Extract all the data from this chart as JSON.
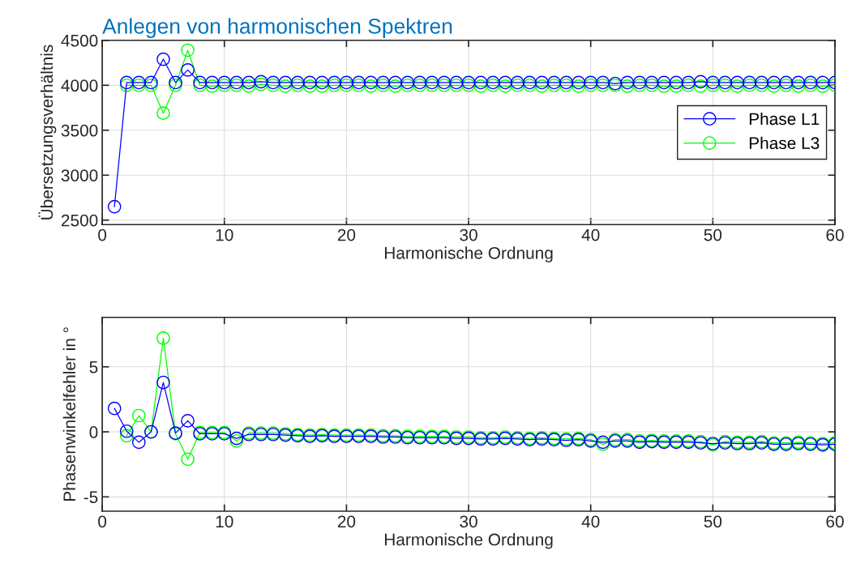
{
  "chart_data": [
    {
      "type": "line",
      "title": "Anlegen von harmonischen Spektren",
      "xlabel": "Harmonische Ordnung",
      "ylabel": "Übersetzungsverhältnis",
      "x": [
        1,
        2,
        3,
        4,
        5,
        6,
        7,
        8,
        9,
        10,
        11,
        12,
        13,
        14,
        15,
        16,
        17,
        18,
        19,
        20,
        21,
        22,
        23,
        24,
        25,
        26,
        27,
        28,
        29,
        30,
        31,
        32,
        33,
        34,
        35,
        36,
        37,
        38,
        39,
        40,
        41,
        42,
        43,
        44,
        45,
        46,
        47,
        48,
        49,
        50,
        51,
        52,
        53,
        54,
        55,
        56,
        57,
        58,
        59,
        60
      ],
      "xlim": [
        0,
        60
      ],
      "xticks": [
        0,
        10,
        20,
        30,
        40,
        50,
        60
      ],
      "ylim": [
        2450,
        4500
      ],
      "yticks": [
        2500,
        3000,
        3500,
        4000,
        4500
      ],
      "grid": true,
      "legend": "center right",
      "marker": "circle",
      "line_style": "solid",
      "series": [
        {
          "name": "Phase L1",
          "color": "#0000ff",
          "values": [
            2650,
            4030,
            4030,
            4030,
            4290,
            4030,
            4170,
            4030,
            4030,
            4030,
            4030,
            4030,
            4040,
            4030,
            4030,
            4030,
            4030,
            4030,
            4030,
            4030,
            4030,
            4030,
            4030,
            4030,
            4030,
            4030,
            4030,
            4030,
            4030,
            4030,
            4030,
            4030,
            4030,
            4030,
            4030,
            4030,
            4030,
            4030,
            4030,
            4030,
            4030,
            4020,
            4030,
            4030,
            4030,
            4030,
            4030,
            4030,
            4040,
            4030,
            4030,
            4030,
            4030,
            4030,
            4030,
            4030,
            4030,
            4030,
            4030,
            4030
          ]
        },
        {
          "name": "Phase L3",
          "color": "#00ff00",
          "values": [
            null,
            4000,
            4000,
            4000,
            3690,
            4000,
            4390,
            4000,
            3990,
            4000,
            4000,
            3990,
            4010,
            4000,
            3990,
            4000,
            3990,
            3990,
            4000,
            4000,
            4000,
            3990,
            4000,
            3990,
            4000,
            4000,
            4000,
            4000,
            4000,
            4000,
            3990,
            4000,
            3990,
            4000,
            4000,
            3990,
            4000,
            4000,
            3990,
            4000,
            4000,
            4000,
            3990,
            4000,
            4000,
            3990,
            3990,
            4000,
            3990,
            4000,
            4000,
            3990,
            4000,
            4000,
            3990,
            4000,
            3990,
            4000,
            3990,
            4000
          ]
        }
      ]
    },
    {
      "type": "line",
      "xlabel": "Harmonische Ordnung",
      "ylabel": "Phasenwinkelfehler in °",
      "x": [
        1,
        2,
        3,
        4,
        5,
        6,
        7,
        8,
        9,
        10,
        11,
        12,
        13,
        14,
        15,
        16,
        17,
        18,
        19,
        20,
        21,
        22,
        23,
        24,
        25,
        26,
        27,
        28,
        29,
        30,
        31,
        32,
        33,
        34,
        35,
        36,
        37,
        38,
        39,
        40,
        41,
        42,
        43,
        44,
        45,
        46,
        47,
        48,
        49,
        50,
        51,
        52,
        53,
        54,
        55,
        56,
        57,
        58,
        59,
        60
      ],
      "xlim": [
        0,
        60
      ],
      "xticks": [
        0,
        10,
        20,
        30,
        40,
        50,
        60
      ],
      "ylim": [
        -6.1,
        8.8
      ],
      "yticks": [
        -5,
        0,
        5
      ],
      "grid": true,
      "marker": "circle",
      "line_style": "solid",
      "series": [
        {
          "color": "#0000ff",
          "values": [
            1.8,
            0.05,
            -0.8,
            0,
            3.8,
            -0.1,
            0.85,
            -0.15,
            -0.15,
            -0.15,
            -0.5,
            -0.2,
            -0.2,
            -0.2,
            -0.25,
            -0.3,
            -0.35,
            -0.3,
            -0.35,
            -0.35,
            -0.35,
            -0.35,
            -0.4,
            -0.4,
            -0.45,
            -0.45,
            -0.45,
            -0.45,
            -0.5,
            -0.5,
            -0.55,
            -0.55,
            -0.5,
            -0.55,
            -0.6,
            -0.55,
            -0.6,
            -0.65,
            -0.6,
            -0.7,
            -0.8,
            -0.7,
            -0.7,
            -0.8,
            -0.75,
            -0.8,
            -0.8,
            -0.8,
            -0.85,
            -0.9,
            -0.85,
            -0.9,
            -0.9,
            -0.85,
            -0.95,
            -0.95,
            -0.9,
            -0.95,
            -1.0,
            -0.95
          ]
        },
        {
          "color": "#00ff00",
          "values": [
            null,
            -0.3,
            1.25,
            0,
            7.2,
            -0.15,
            -2.1,
            -0.05,
            -0.05,
            -0.05,
            -0.7,
            -0.1,
            -0.1,
            -0.1,
            -0.15,
            -0.2,
            -0.25,
            -0.2,
            -0.25,
            -0.25,
            -0.25,
            -0.25,
            -0.3,
            -0.3,
            -0.35,
            -0.35,
            -0.35,
            -0.35,
            -0.4,
            -0.4,
            -0.45,
            -0.45,
            -0.4,
            -0.45,
            -0.5,
            -0.45,
            -0.5,
            -0.55,
            -0.5,
            -0.6,
            -0.95,
            -0.6,
            -0.6,
            -0.7,
            -0.65,
            -0.7,
            -0.7,
            -0.7,
            -0.75,
            -1.0,
            -0.75,
            -0.8,
            -0.8,
            -0.75,
            -0.85,
            -0.85,
            -0.8,
            -0.85,
            -0.9,
            -0.85
          ]
        }
      ]
    }
  ]
}
